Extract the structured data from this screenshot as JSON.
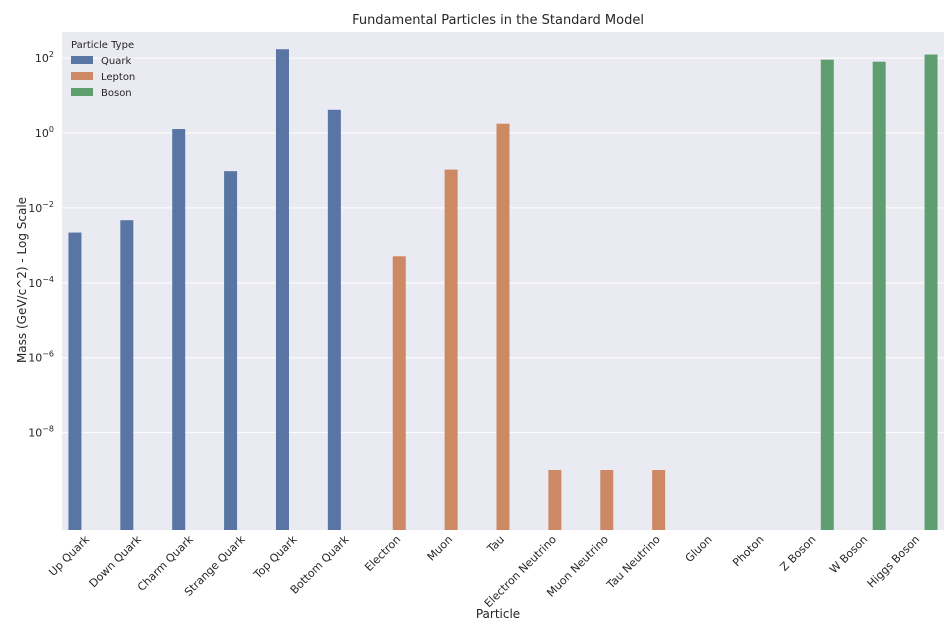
{
  "chart_data": {
    "type": "bar",
    "title": "Fundamental Particles in the Standard Model",
    "xlabel": "Particle",
    "ylabel": "Mass (GeV/c^2) - Log Scale",
    "y_scale": "log",
    "ylim": [
      2.5e-11,
      500
    ],
    "grid": true,
    "legend_placement": "top-left",
    "legend_title": "Particle Type",
    "categories": [
      "Up Quark",
      "Down Quark",
      "Charm Quark",
      "Strange Quark",
      "Top Quark",
      "Bottom Quark",
      "Electron",
      "Muon",
      "Tau",
      "Electron Neutrino",
      "Muon Neutrino",
      "Tau Neutrino",
      "Gluon",
      "Photon",
      "Z Boson",
      "W Boson",
      "Higgs Boson"
    ],
    "y_ticks": [
      {
        "value": 1e-08,
        "base": "10",
        "exp": "−8"
      },
      {
        "value": 1e-06,
        "base": "10",
        "exp": "−6"
      },
      {
        "value": 0.0001,
        "base": "10",
        "exp": "−4"
      },
      {
        "value": 0.01,
        "base": "10",
        "exp": "−2"
      },
      {
        "value": 1,
        "base": "10",
        "exp": "0"
      },
      {
        "value": 100,
        "base": "10",
        "exp": "2"
      }
    ],
    "series": [
      {
        "name": "Quark",
        "color": "#5975a4",
        "values": [
          0.0022,
          0.0047,
          1.28,
          0.096,
          173.1,
          4.18,
          null,
          null,
          null,
          null,
          null,
          null,
          null,
          null,
          null,
          null,
          null
        ]
      },
      {
        "name": "Lepton",
        "color": "#cc8963",
        "values": [
          null,
          null,
          null,
          null,
          null,
          null,
          0.000511,
          0.1057,
          1.777,
          1e-09,
          1e-09,
          1e-09,
          null,
          null,
          null,
          null,
          null
        ]
      },
      {
        "name": "Boson",
        "color": "#5f9e6e",
        "values": [
          null,
          null,
          null,
          null,
          null,
          null,
          null,
          null,
          null,
          null,
          null,
          null,
          0,
          0,
          91.19,
          80.38,
          125.1
        ]
      }
    ]
  }
}
